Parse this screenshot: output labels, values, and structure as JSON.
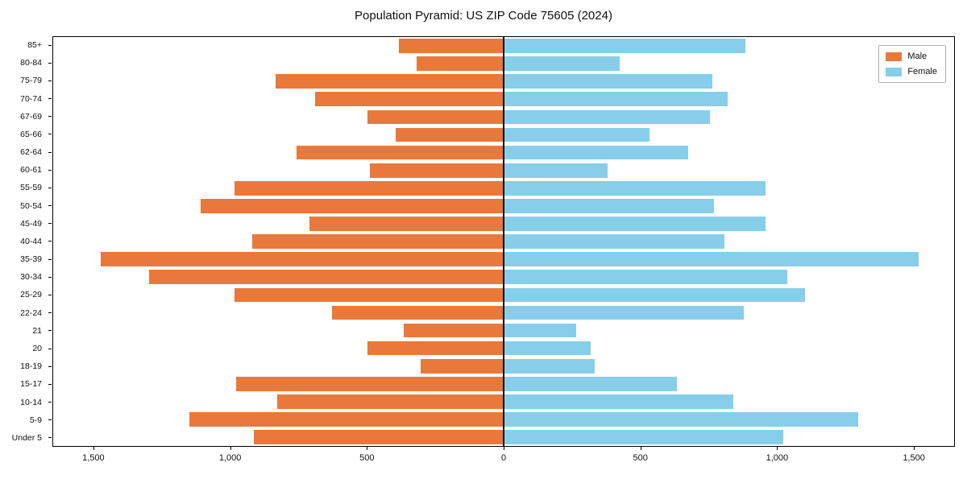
{
  "title": "Population Pyramid: US ZIP Code 75605 (2024)",
  "legend": {
    "male_label": "Male",
    "female_label": "Female"
  },
  "colors": {
    "male": "#e8793b",
    "female": "#87ceeb",
    "axis": "#000000"
  },
  "chart_data": {
    "type": "bar",
    "subtype": "population-pyramid",
    "title": "Population Pyramid: US ZIP Code 75605 (2024)",
    "categories": [
      "85+",
      "80-84",
      "75-79",
      "70-74",
      "67-69",
      "65-66",
      "62-64",
      "60-61",
      "55-59",
      "50-54",
      "45-49",
      "40-44",
      "35-39",
      "30-34",
      "25-29",
      "22-24",
      "21",
      "20",
      "18-19",
      "15-17",
      "10-14",
      "5-9",
      "Under 5"
    ],
    "series": [
      {
        "name": "Male",
        "side": "left",
        "color": "#e8793b",
        "values": [
          385,
          320,
          835,
          690,
          500,
          395,
          760,
          490,
          985,
          1110,
          710,
          920,
          1475,
          1300,
          985,
          630,
          365,
          500,
          305,
          980,
          830,
          1150,
          915
        ]
      },
      {
        "name": "Female",
        "side": "right",
        "color": "#87ceeb",
        "values": [
          885,
          425,
          765,
          820,
          755,
          535,
          675,
          380,
          960,
          770,
          960,
          810,
          1520,
          1040,
          1105,
          880,
          265,
          320,
          335,
          635,
          840,
          1300,
          1025
        ]
      }
    ],
    "xlim": [
      -1650,
      1650
    ],
    "xticks": [
      -1500,
      -1000,
      -500,
      0,
      500,
      1000,
      1500
    ],
    "xtick_labels": [
      "1,500",
      "1,000",
      "500",
      "0",
      "500",
      "1,000",
      "1,500"
    ],
    "ylabel": "",
    "xlabel": "",
    "grid": false,
    "legend_position": "upper right"
  }
}
